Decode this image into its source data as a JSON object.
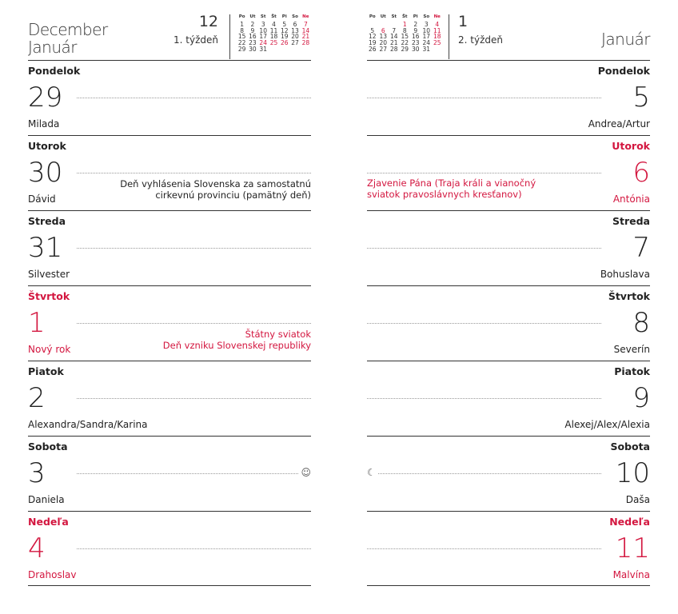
{
  "colors": {
    "accent": "#d3163f",
    "text": "#222222"
  },
  "left": {
    "months": [
      "December",
      "Január"
    ],
    "week_number": "12",
    "week_label": "1. týždeň",
    "calendar": {
      "headers": [
        "Po",
        "Ut",
        "St",
        "Št",
        "Pi",
        "So",
        "Ne"
      ],
      "weeks": [
        [
          "1",
          "2",
          "3",
          "4",
          "5",
          "6",
          "7"
        ],
        [
          "8",
          "9",
          "10",
          "11",
          "12",
          "13",
          "14"
        ],
        [
          "15",
          "16",
          "17",
          "18",
          "19",
          "20",
          "21"
        ],
        [
          "22",
          "23",
          "24",
          "25",
          "26",
          "27",
          "28"
        ],
        [
          "29",
          "30",
          "31",
          "",
          "",
          "",
          ""
        ]
      ],
      "red": [
        "7",
        "14",
        "21",
        "28",
        "24",
        "25",
        "26"
      ]
    },
    "days": [
      {
        "weekday": "Pondelok",
        "day": "29",
        "name": "Milada",
        "holiday": false
      },
      {
        "weekday": "Utorok",
        "day": "30",
        "name": "Dávid",
        "holiday": false,
        "note": [
          "Deň vyhlásenia Slovenska za samostatnú",
          "cirkevnú provinciu (pamätný deň)"
        ],
        "note_red": false
      },
      {
        "weekday": "Streda",
        "day": "31",
        "name": "Silvester",
        "holiday": false
      },
      {
        "weekday": "Štvrtok",
        "day": "1",
        "name": "Nový rok",
        "holiday": true,
        "note": [
          "Štátny sviatok",
          "Deň vzniku Slovenskej republiky"
        ],
        "note_red": true
      },
      {
        "weekday": "Piatok",
        "day": "2",
        "name": "Alexandra/Sandra/Karina",
        "holiday": false
      },
      {
        "weekday": "Sobota",
        "day": "3",
        "name": "Daniela",
        "holiday": false,
        "moon": "full-moon-icon"
      },
      {
        "weekday": "Nedeľa",
        "day": "4",
        "name": "Drahoslav",
        "holiday": true
      }
    ]
  },
  "right": {
    "month": "Január",
    "week_number": "1",
    "week_label": "2. týždeň",
    "calendar": {
      "headers": [
        "Po",
        "Ut",
        "St",
        "Št",
        "Pi",
        "So",
        "Ne"
      ],
      "weeks": [
        [
          "",
          "",
          "",
          "1",
          "2",
          "3",
          "4"
        ],
        [
          "5",
          "6",
          "7",
          "8",
          "9",
          "10",
          "11"
        ],
        [
          "12",
          "13",
          "14",
          "15",
          "16",
          "17",
          "18"
        ],
        [
          "19",
          "20",
          "21",
          "22",
          "23",
          "24",
          "25"
        ],
        [
          "26",
          "27",
          "28",
          "29",
          "30",
          "31",
          ""
        ]
      ],
      "red": [
        "1",
        "4",
        "6",
        "11",
        "18",
        "25"
      ]
    },
    "days": [
      {
        "weekday": "Pondelok",
        "day": "5",
        "name": "Andrea/Artur",
        "holiday": false
      },
      {
        "weekday": "Utorok",
        "day": "6",
        "name": "Antónia",
        "holiday": true,
        "note": [
          "Zjavenie Pána (Traja králi a vianočný",
          "sviatok pravoslávnych kresťanov)"
        ],
        "note_red": true
      },
      {
        "weekday": "Streda",
        "day": "7",
        "name": "Bohuslava",
        "holiday": false
      },
      {
        "weekday": "Štvrtok",
        "day": "8",
        "name": "Severín",
        "holiday": false
      },
      {
        "weekday": "Piatok",
        "day": "9",
        "name": "Alexej/Alex/Alexia",
        "holiday": false
      },
      {
        "weekday": "Sobota",
        "day": "10",
        "name": "Daša",
        "holiday": false,
        "moon": "crescent-moon-icon"
      },
      {
        "weekday": "Nedeľa",
        "day": "11",
        "name": "Malvína",
        "holiday": true
      }
    ]
  }
}
